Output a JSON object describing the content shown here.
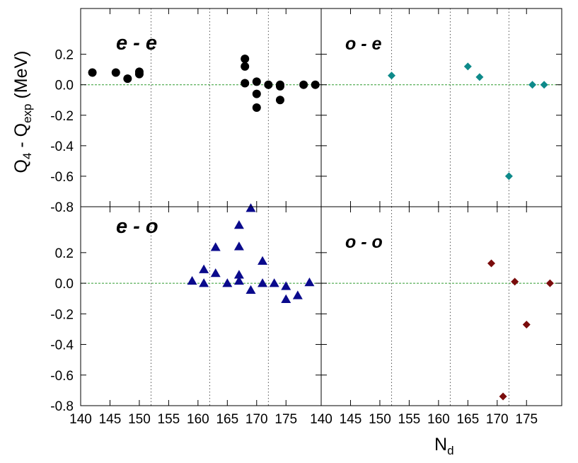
{
  "chart_data": {
    "type": "scatter",
    "xlabel": "N",
    "xlabel_sub": "d",
    "ylabel_pre": "Q",
    "ylabel_sub1": "4",
    "ylabel_mid": " - Q",
    "ylabel_sub2": "exp",
    "ylabel_post": " (MeV)",
    "xlim": [
      140,
      181
    ],
    "ylim": [
      -0.8,
      0.5
    ],
    "x_ticks": [
      140,
      145,
      150,
      155,
      160,
      165,
      170,
      175
    ],
    "x_tick_labels": [
      "140",
      "145",
      "150",
      "155",
      "160",
      "165",
      "170",
      "175"
    ],
    "y_ticks": [
      -0.8,
      -0.6,
      -0.4,
      -0.2,
      0.0,
      0.2
    ],
    "y_tick_labels": [
      "-0.8",
      "-0.6",
      "-0.4",
      "-0.2",
      "0.0",
      "0.2"
    ],
    "vertical_dotted_lines": [
      152,
      162,
      172
    ],
    "reference_line_y": 0.0,
    "panels": [
      {
        "label": "e - e",
        "marker": "circle",
        "color": "#000000",
        "points": [
          {
            "x": 142,
            "y": 0.08
          },
          {
            "x": 146,
            "y": 0.08
          },
          {
            "x": 148,
            "y": 0.04
          },
          {
            "x": 150,
            "y": 0.07
          },
          {
            "x": 150,
            "y": 0.085
          },
          {
            "x": 168,
            "y": 0.17
          },
          {
            "x": 168,
            "y": 0.12
          },
          {
            "x": 168,
            "y": 0.01
          },
          {
            "x": 170,
            "y": 0.02
          },
          {
            "x": 170,
            "y": -0.06
          },
          {
            "x": 170,
            "y": -0.15
          },
          {
            "x": 172,
            "y": 0.0
          },
          {
            "x": 174,
            "y": 0.0
          },
          {
            "x": 174,
            "y": -0.01
          },
          {
            "x": 174,
            "y": -0.1
          },
          {
            "x": 178,
            "y": 0.0
          },
          {
            "x": 180,
            "y": 0.0
          }
        ]
      },
      {
        "label": "o - e",
        "marker": "diamond",
        "color": "#0e8a8a",
        "points": [
          {
            "x": 152,
            "y": 0.06
          },
          {
            "x": 165,
            "y": 0.12
          },
          {
            "x": 167,
            "y": 0.05
          },
          {
            "x": 172,
            "y": -0.6
          },
          {
            "x": 176,
            "y": 0.0
          },
          {
            "x": 178,
            "y": 0.0
          }
        ]
      },
      {
        "label": "e - o",
        "marker": "triangle",
        "color": "#0a0a8c",
        "points": [
          {
            "x": 159,
            "y": 0.015
          },
          {
            "x": 161,
            "y": 0.09
          },
          {
            "x": 161,
            "y": 0.0
          },
          {
            "x": 163,
            "y": 0.235
          },
          {
            "x": 163,
            "y": 0.065
          },
          {
            "x": 165,
            "y": 0.0
          },
          {
            "x": 167,
            "y": 0.38
          },
          {
            "x": 167,
            "y": 0.24
          },
          {
            "x": 167,
            "y": 0.055
          },
          {
            "x": 167,
            "y": 0.015
          },
          {
            "x": 169,
            "y": 0.49
          },
          {
            "x": 169,
            "y": -0.045
          },
          {
            "x": 171,
            "y": 0.145
          },
          {
            "x": 171,
            "y": 0.0
          },
          {
            "x": 173,
            "y": 0.0
          },
          {
            "x": 175,
            "y": -0.02
          },
          {
            "x": 175,
            "y": -0.105
          },
          {
            "x": 177,
            "y": -0.08
          },
          {
            "x": 179,
            "y": 0.005
          }
        ]
      },
      {
        "label": "o - o",
        "marker": "diamond",
        "color": "#7a0c0c",
        "points": [
          {
            "x": 169,
            "y": 0.13
          },
          {
            "x": 171,
            "y": -0.74
          },
          {
            "x": 173,
            "y": 0.01
          },
          {
            "x": 175,
            "y": -0.27
          },
          {
            "x": 179,
            "y": 0.0
          }
        ]
      }
    ]
  }
}
